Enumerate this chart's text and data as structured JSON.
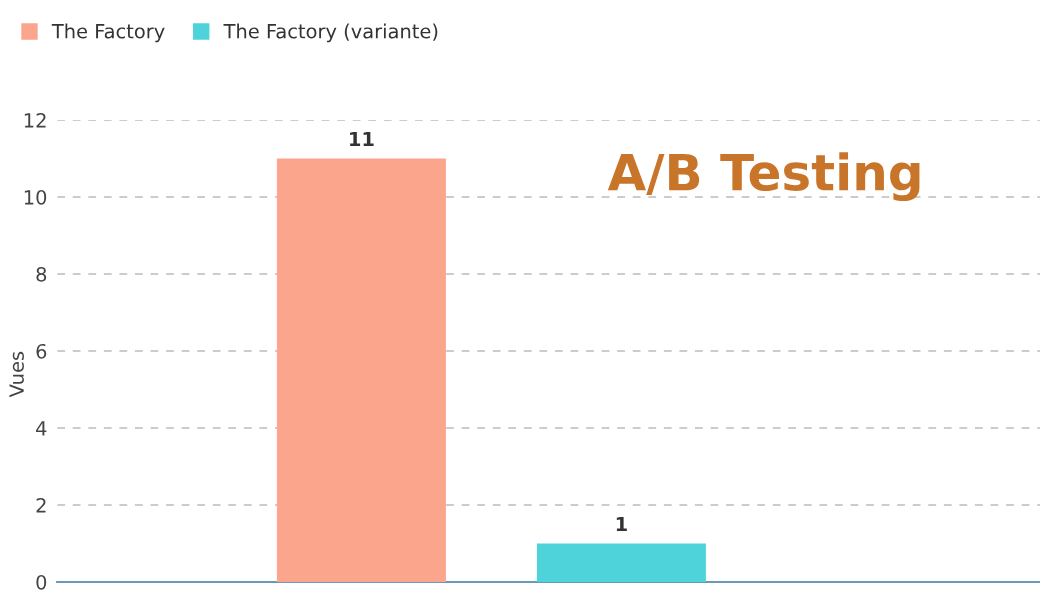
{
  "chart_data": {
    "type": "bar",
    "title": "A/B Testing",
    "ylabel": "Vues",
    "categories": [
      null,
      null
    ],
    "series": [
      {
        "name": "The Factory",
        "color": "#fca58d",
        "values": [
          11,
          null
        ]
      },
      {
        "name": "The Factory (variante)",
        "color": "#4fd3db",
        "values": [
          null,
          1
        ]
      }
    ],
    "ylim": [
      0,
      12
    ],
    "yticks": [
      0,
      2,
      4,
      6,
      8,
      10,
      12
    ],
    "grid": "y",
    "legend": "top left",
    "data_labels": true
  }
}
